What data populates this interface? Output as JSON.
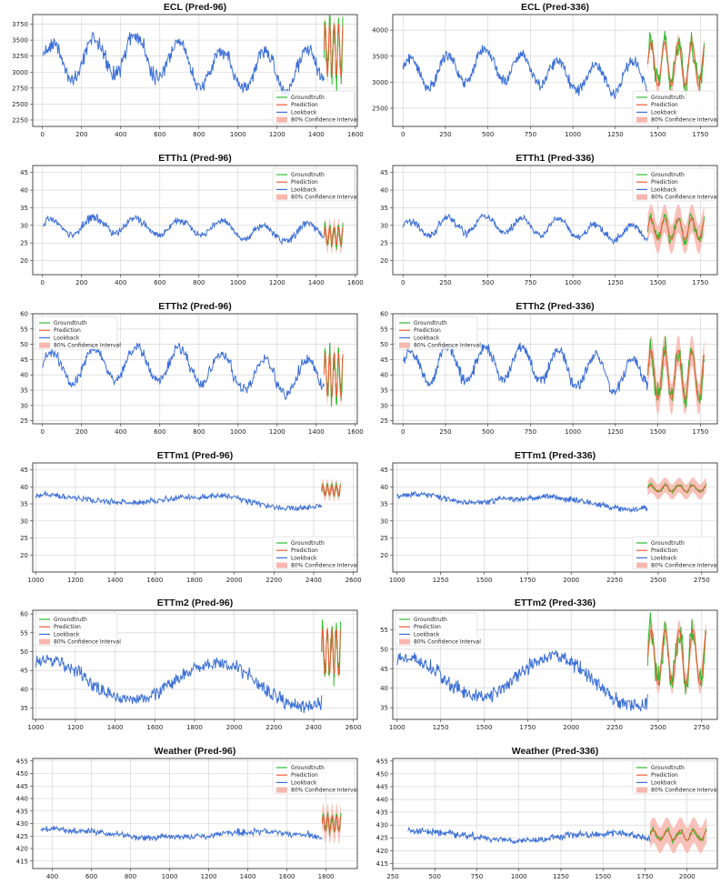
{
  "figure_title": "",
  "colors": {
    "groundtruth": "#2ebd2e",
    "prediction": "#ef5a36",
    "lookback": "#3c6fd6",
    "confidence": "#f7b7ae",
    "grid": "#cfcfcf"
  },
  "legend_labels": [
    "Groundtruth",
    "Prediction",
    "Lookback",
    "80% Confidence Interval"
  ],
  "chart_data": [
    {
      "type": "line",
      "title": "ECL (Pred-96)",
      "xlim": [
        -50,
        1610
      ],
      "ylim": [
        2150,
        3900
      ],
      "xticks": [
        0,
        200,
        400,
        600,
        800,
        1000,
        1200,
        1400,
        1600
      ],
      "yticks": [
        2250,
        2500,
        2750,
        3000,
        3250,
        3500,
        3750
      ],
      "legend": "bottom-right",
      "lookback_range": [
        0,
        1440
      ],
      "pred_range": [
        1440,
        1536
      ],
      "level": 3100,
      "amp": 400,
      "amp2": 150,
      "period": 24,
      "noise": 120,
      "pred_level": 3350,
      "pred_amp": 400,
      "ci_halfwidth": 130,
      "seed": 3
    },
    {
      "type": "line",
      "title": "ECL (Pred-336)",
      "xlim": [
        -60,
        1850
      ],
      "ylim": [
        2150,
        4300
      ],
      "xticks": [
        0,
        250,
        500,
        750,
        1000,
        1250,
        1500,
        1750
      ],
      "yticks": [
        2500,
        3000,
        3500,
        4000
      ],
      "legend": "bottom-right",
      "lookback_range": [
        0,
        1440
      ],
      "pred_range": [
        1440,
        1776
      ],
      "level": 3200,
      "amp": 350,
      "amp2": 120,
      "period": 24,
      "noise": 110,
      "pred_level": 3350,
      "pred_amp": 420,
      "ci_halfwidth": 140,
      "seed": 4
    },
    {
      "type": "line",
      "title": "ETTh1 (Pred-96)",
      "xlim": [
        -50,
        1610
      ],
      "ylim": [
        16,
        47
      ],
      "xticks": [
        0,
        200,
        400,
        600,
        800,
        1000,
        1200,
        1400,
        1600
      ],
      "yticks": [
        20,
        25,
        30,
        35,
        40,
        45
      ],
      "legend": "top-right",
      "lookback_range": [
        0,
        1440
      ],
      "pred_range": [
        1440,
        1536
      ],
      "level": 29,
      "amp": 3,
      "amp2": 1,
      "period": 24,
      "noise": 1.2,
      "pred_level": 27,
      "pred_amp": 2.5,
      "ci_halfwidth": 2.5,
      "seed": 5
    },
    {
      "type": "line",
      "title": "ETTh1 (Pred-336)",
      "xlim": [
        -60,
        1850
      ],
      "ylim": [
        16,
        47
      ],
      "xticks": [
        0,
        250,
        500,
        750,
        1000,
        1250,
        1500,
        1750
      ],
      "yticks": [
        20,
        25,
        30,
        35,
        40,
        45
      ],
      "legend": "top-right",
      "lookback_range": [
        0,
        1440
      ],
      "pred_range": [
        1440,
        1776
      ],
      "level": 29,
      "amp": 3,
      "amp2": 1,
      "period": 24,
      "noise": 1.2,
      "pred_level": 29,
      "pred_amp": 3,
      "ci_halfwidth": 4,
      "seed": 6
    },
    {
      "type": "line",
      "title": "ETTh2 (Pred-96)",
      "xlim": [
        -50,
        1610
      ],
      "ylim": [
        24,
        60
      ],
      "xticks": [
        0,
        200,
        400,
        600,
        800,
        1000,
        1200,
        1400,
        1600
      ],
      "yticks": [
        25,
        30,
        35,
        40,
        45,
        50,
        55,
        60
      ],
      "legend": "top-left",
      "lookback_range": [
        0,
        1440
      ],
      "pred_range": [
        1440,
        1536
      ],
      "level": 42,
      "amp": 7,
      "amp2": 2,
      "period": 24,
      "noise": 1.2,
      "pred_level": 40,
      "pred_amp": 7,
      "ci_halfwidth": 3,
      "seed": 7
    },
    {
      "type": "line",
      "title": "ETTh2 (Pred-336)",
      "xlim": [
        -60,
        1850
      ],
      "ylim": [
        24,
        60
      ],
      "xticks": [
        0,
        250,
        500,
        750,
        1000,
        1250,
        1500,
        1750
      ],
      "yticks": [
        25,
        30,
        35,
        40,
        45,
        50,
        55,
        60
      ],
      "legend": "top-left",
      "lookback_range": [
        0,
        1440
      ],
      "pred_range": [
        1440,
        1776
      ],
      "level": 42,
      "amp": 7,
      "amp2": 2,
      "period": 24,
      "noise": 1.2,
      "pred_level": 40,
      "pred_amp": 8,
      "ci_halfwidth": 5,
      "seed": 8
    },
    {
      "type": "line",
      "title": "ETTm1 (Pred-96)",
      "xlim": [
        985,
        2620
      ],
      "ylim": [
        15,
        47
      ],
      "xticks": [
        1000,
        1200,
        1400,
        1600,
        1800,
        2000,
        2200,
        2400,
        2600
      ],
      "yticks": [
        20,
        25,
        30,
        35,
        40,
        45
      ],
      "legend": "bottom-right",
      "lookback_range": [
        1000,
        2440
      ],
      "pred_range": [
        2440,
        2536
      ],
      "level": 36,
      "amp": 1.8,
      "amp2": 0.8,
      "period": 96,
      "noise": 1.2,
      "pred_level": 39,
      "pred_amp": 1.5,
      "ci_halfwidth": 1.8,
      "seed": 9
    },
    {
      "type": "line",
      "title": "ETTm1 (Pred-336)",
      "xlim": [
        975,
        2840
      ],
      "ylim": [
        15,
        47
      ],
      "xticks": [
        1000,
        1250,
        1500,
        1750,
        2000,
        2250,
        2500,
        2750
      ],
      "yticks": [
        20,
        25,
        30,
        35,
        40,
        45
      ],
      "legend": "bottom-right",
      "lookback_range": [
        1000,
        2440
      ],
      "pred_range": [
        2440,
        2776
      ],
      "level": 36,
      "amp": 1.8,
      "amp2": 0.8,
      "period": 96,
      "noise": 1.2,
      "pred_level": 39.5,
      "pred_amp": 1,
      "ci_halfwidth": 2.2,
      "seed": 10
    },
    {
      "type": "line",
      "title": "ETTm2 (Pred-96)",
      "xlim": [
        985,
        2620
      ],
      "ylim": [
        32,
        61
      ],
      "xticks": [
        1000,
        1200,
        1400,
        1600,
        1800,
        2000,
        2200,
        2400,
        2600
      ],
      "yticks": [
        35,
        40,
        45,
        50,
        55,
        60
      ],
      "legend": "top-left",
      "lookback_range": [
        1000,
        2440
      ],
      "pred_range": [
        2440,
        2536
      ],
      "level": 42,
      "amp": 7,
      "amp2": 1,
      "period": 96,
      "noise": 0.8,
      "pred_level": 50,
      "pred_amp": 6,
      "ci_halfwidth": 1.5,
      "seed": 11
    },
    {
      "type": "line",
      "title": "ETTm2 (Pred-336)",
      "xlim": [
        975,
        2840
      ],
      "ylim": [
        32,
        60
      ],
      "xticks": [
        1000,
        1250,
        1500,
        1750,
        2000,
        2250,
        2500,
        2750
      ],
      "yticks": [
        35,
        40,
        45,
        50,
        55
      ],
      "legend": "top-left",
      "lookback_range": [
        1000,
        2440
      ],
      "pred_range": [
        2440,
        2776
      ],
      "level": 42,
      "amp": 7,
      "amp2": 1,
      "period": 96,
      "noise": 0.8,
      "pred_level": 48,
      "pred_amp": 7,
      "ci_halfwidth": 2.5,
      "seed": 12
    },
    {
      "type": "line",
      "title": "Weather (Pred-96)",
      "xlim": [
        300,
        1960
      ],
      "ylim": [
        412,
        456
      ],
      "xticks": [
        400,
        600,
        800,
        1000,
        1200,
        1400,
        1600,
        1800
      ],
      "yticks": [
        415,
        420,
        425,
        430,
        435,
        440,
        445,
        450,
        455
      ],
      "legend": "top-right",
      "lookback_range": [
        340,
        1780
      ],
      "pred_range": [
        1780,
        1876
      ],
      "level": 425,
      "amp": 4,
      "amp2": 2,
      "period": 144,
      "noise": 1.2,
      "pred_level": 430,
      "pred_amp": 3,
      "ci_halfwidth": 5,
      "seed": 13
    },
    {
      "type": "line",
      "title": "Weather (Pred-336)",
      "xlim": [
        250,
        2180
      ],
      "ylim": [
        413,
        456
      ],
      "xticks": [
        250,
        500,
        750,
        1000,
        1250,
        1500,
        1750,
        2000
      ],
      "yticks": [
        415,
        420,
        425,
        430,
        435,
        440,
        445,
        450,
        455
      ],
      "legend": "top-right",
      "lookback_range": [
        340,
        1780
      ],
      "pred_range": [
        1780,
        2116
      ],
      "level": 425,
      "amp": 4,
      "amp2": 2,
      "period": 144,
      "noise": 1.2,
      "pred_level": 426,
      "pred_amp": 2,
      "ci_halfwidth": 5,
      "seed": 14
    }
  ]
}
